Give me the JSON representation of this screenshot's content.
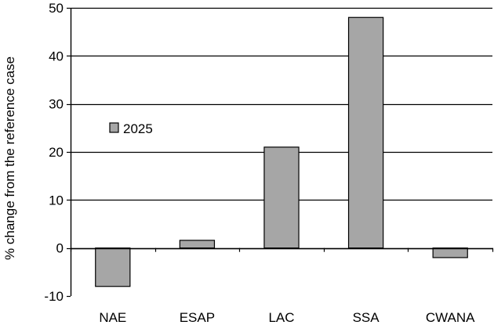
{
  "chart_data": {
    "type": "bar",
    "categories": [
      "NAE",
      "ESAP",
      "LAC",
      "SSA",
      "CWANA"
    ],
    "series": [
      {
        "name": "2025",
        "values": [
          -8,
          1.6,
          21,
          48,
          -2
        ]
      }
    ],
    "title": "",
    "xlabel": "",
    "ylabel": "% change from the reference case",
    "ylim": [
      -10,
      50
    ],
    "yticks": [
      -10,
      0,
      10,
      20,
      30,
      40,
      50
    ],
    "grid": true,
    "legend": "upper-left inside plot",
    "colors": {
      "bar": "#a6a6a6",
      "bar_stroke": "#000000",
      "grid": "#000000"
    }
  }
}
